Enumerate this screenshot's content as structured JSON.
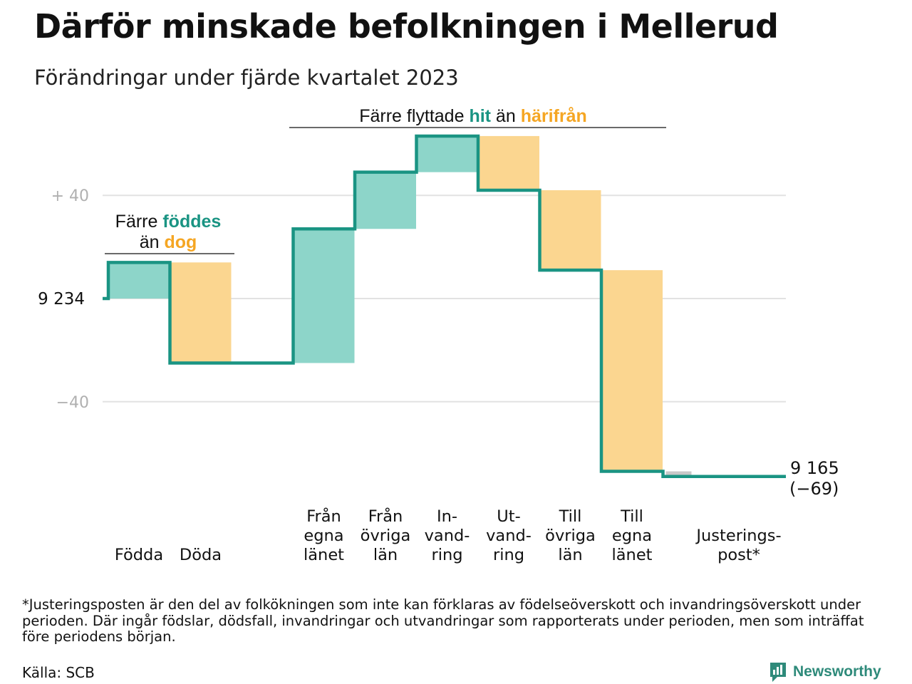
{
  "title": "Därför minskade befolkningen i Mellerud",
  "subtitle": "Förändringar under fjärde kvartalet 2023",
  "colors": {
    "increase": "#8dd5c9",
    "decrease": "#fbd690",
    "line": "#1a9483",
    "adjust": "#c8c8c8",
    "grid": "#e2e2e2",
    "tick": "#b0b0b0",
    "accentTeal": "#1a9483",
    "accentOrange": "#f5a623"
  },
  "chart_data": {
    "type": "waterfall",
    "start_label": "9 234",
    "start_value": 9234,
    "ylim": [
      -80,
      64
    ],
    "yticks": [
      {
        "value": 40,
        "label": "+ 40"
      },
      {
        "value": -40,
        "label": "−40"
      }
    ],
    "grid": true,
    "steps": [
      {
        "label": "Födda",
        "value": 14,
        "kind": "increase"
      },
      {
        "label": "Döda",
        "value": -39,
        "kind": "decrease"
      },
      {
        "label": "",
        "value": 0,
        "kind": "gap"
      },
      {
        "label": "Från\negna\nlänet",
        "value": 52,
        "kind": "increase"
      },
      {
        "label": "Från\növriga\nlän",
        "value": 22,
        "kind": "increase"
      },
      {
        "label": "In-\nvand-\nring",
        "value": 14,
        "kind": "increase"
      },
      {
        "label": "Ut-\nvand-\nring",
        "value": -21,
        "kind": "decrease"
      },
      {
        "label": "Till\növriga\nlän",
        "value": -31,
        "kind": "decrease"
      },
      {
        "label": "Till\negna\nlänet",
        "value": -78,
        "kind": "decrease"
      },
      {
        "label": "Justerings-\npost*",
        "value": -2,
        "kind": "adjust"
      }
    ],
    "end_label": "9 165",
    "end_change": "(−69)",
    "annotations": [
      {
        "group": "births",
        "parts": [
          {
            "text": "Färre ",
            "color": "dark",
            "bold": false
          },
          {
            "text": "föddes",
            "color": "teal",
            "bold": true
          },
          {
            "text": "\nän ",
            "color": "dark",
            "bold": false
          },
          {
            "text": "dog",
            "color": "orange",
            "bold": true
          }
        ]
      },
      {
        "group": "moves",
        "parts": [
          {
            "text": "Färre flyttade ",
            "color": "dark",
            "bold": false
          },
          {
            "text": "hit",
            "color": "teal",
            "bold": true
          },
          {
            "text": " än ",
            "color": "dark",
            "bold": false
          },
          {
            "text": "härifrån",
            "color": "orange",
            "bold": true
          }
        ]
      }
    ]
  },
  "footnote": "*Justeringsposten är den del av folkökningen som inte kan förklaras av födelseöverskott och invandringsöverskott under perioden. Där ingår födslar, dödsfall, invandringar och utvandringar som rapporterats under perioden, men som inträffat före periodens början.",
  "source": "Källa: SCB",
  "brand": {
    "name": "Newsworthy",
    "icon": "newsworthy-logo-icon"
  }
}
